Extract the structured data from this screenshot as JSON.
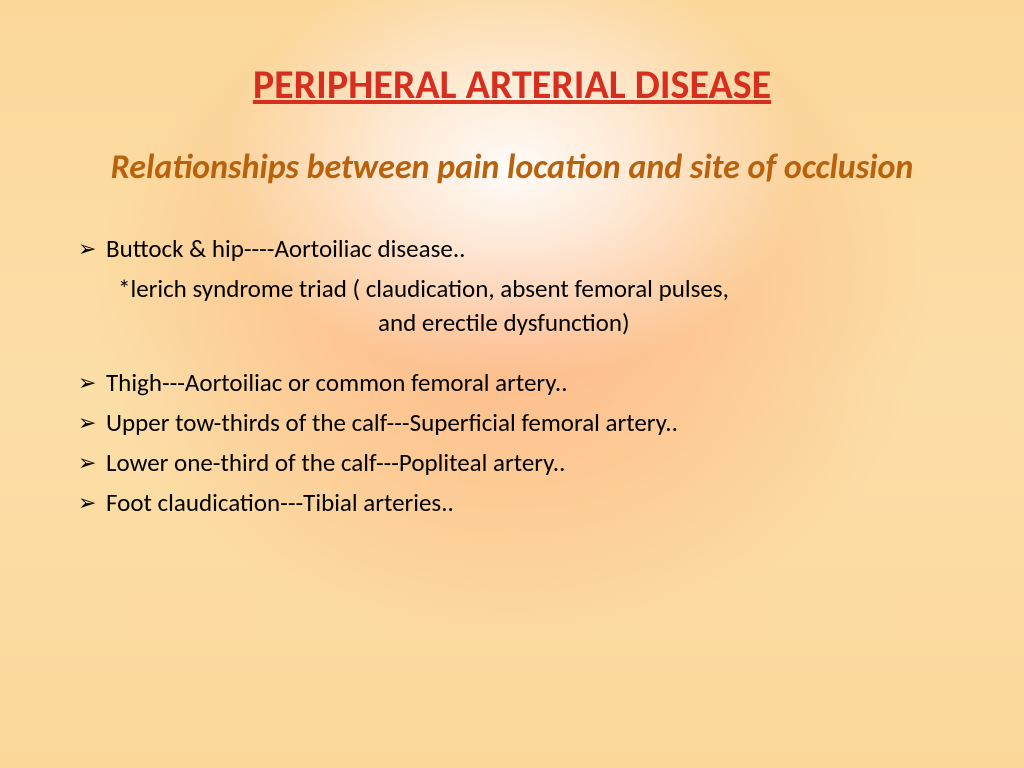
{
  "colors": {
    "title": "#d62f1f",
    "subtitle": "#b9620e",
    "body": "#000000",
    "arrow": "#000000"
  },
  "fonts": {
    "title_size": 40,
    "subtitle_size": 34,
    "body_size": 25
  },
  "title": "PERIPHERAL ARTERIAL DISEASE",
  "subtitle": "Relationships between pain location and site of occlusion",
  "bullets": {
    "b1": "Buttock & hip----Aortoiliac disease..",
    "b1_sub1": "*lerich syndrome triad ( claudication, absent femoral pulses,",
    "b1_sub2": "and erectile dysfunction)",
    "b2": "Thigh---Aortoiliac or common femoral artery..",
    "b3": "Upper tow-thirds of the calf---Superficial femoral artery..",
    "b4": "Lower one-third of the calf---Popliteal artery..",
    "b5": "Foot claudication---Tibial arteries.."
  },
  "arrow_glyph": "➢"
}
